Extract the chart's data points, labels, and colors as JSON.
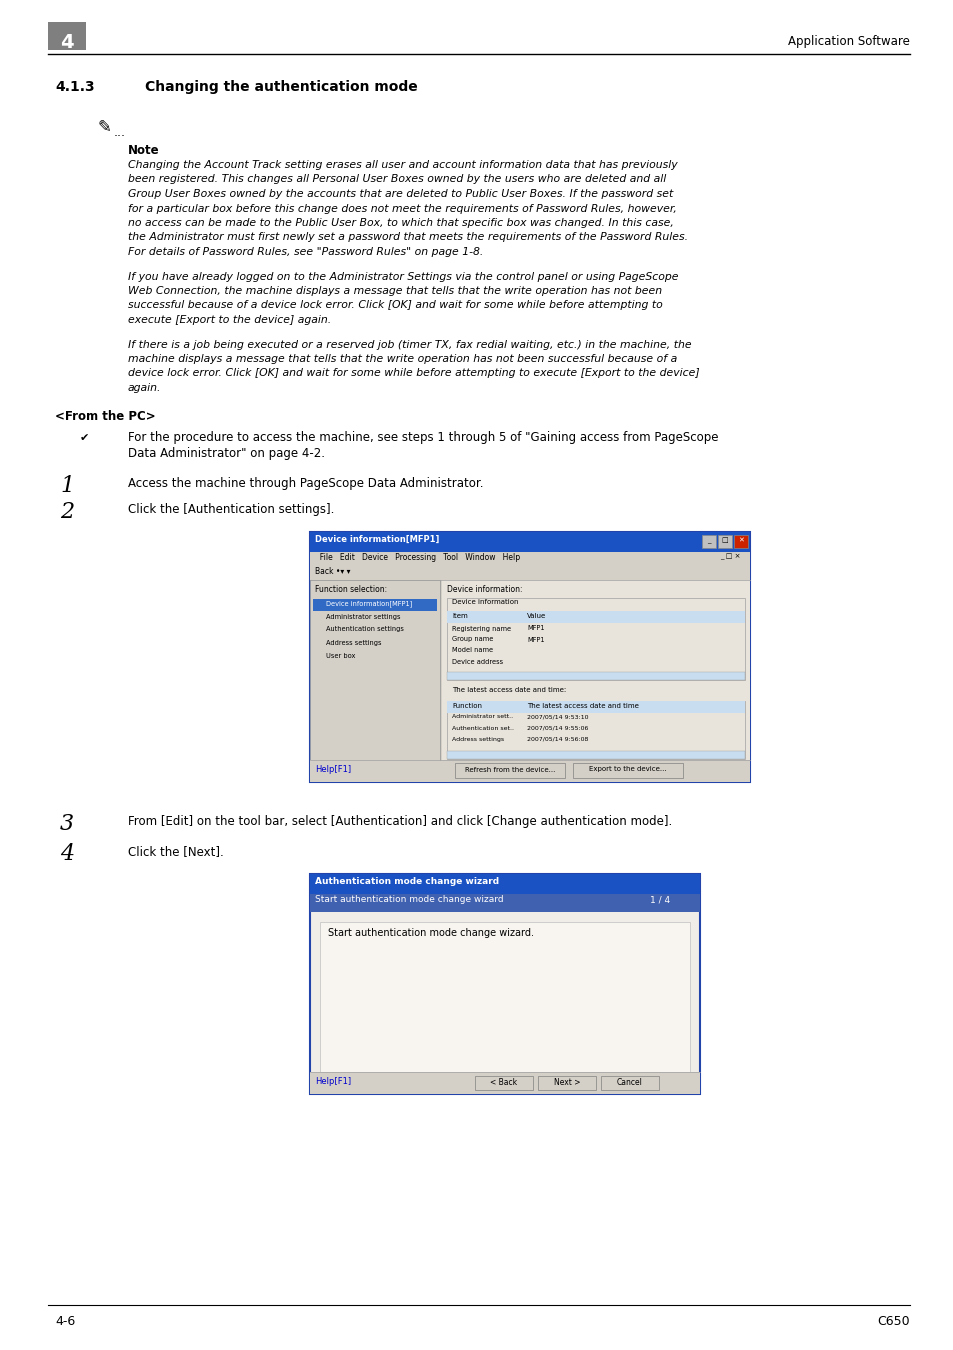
{
  "title_number": "4",
  "header_right": "Application Software",
  "section_number": "4.1.3",
  "section_title": "Changing the authentication mode",
  "note_label": "Note",
  "note_text1_lines": [
    "Changing the Account Track setting erases all user and account information data that has previously",
    "been registered. This changes all Personal User Boxes owned by the users who are deleted and all",
    "Group User Boxes owned by the accounts that are deleted to Public User Boxes. If the password set",
    "for a particular box before this change does not meet the requirements of Password Rules, however,",
    "no access can be made to the Public User Box, to which that specific box was changed. In this case,",
    "the Administrator must first newly set a password that meets the requirements of the Password Rules.",
    "For details of Password Rules, see \"Password Rules\" on page 1-8."
  ],
  "note_text2_lines": [
    "If you have already logged on to the Administrator Settings via the control panel or using PageScope",
    "Web Connection, the machine displays a message that tells that the write operation has not been",
    "successful because of a device lock error. Click [OK] and wait for some while before attempting to",
    "execute [Export to the device] again."
  ],
  "note_text3_lines": [
    "If there is a job being executed or a reserved job (timer TX, fax redial waiting, etc.) in the machine, the",
    "machine displays a message that tells that the write operation has not been successful because of a",
    "device lock error. Click [OK] and wait for some while before attempting to execute [Export to the device]",
    "again."
  ],
  "from_pc_label": "<From the PC>",
  "bullet_text_lines": [
    "For the procedure to access the machine, see steps 1 through 5 of \"Gaining access from PageScope",
    "Data Administrator\" on page 4-2."
  ],
  "step1_text": "Access the machine through PageScope Data Administrator.",
  "step2_text": "Click the [Authentication settings].",
  "step3_text": "From [Edit] on the tool bar, select [Authentication] and click [Change authentication mode].",
  "step4_text": "Click the [Next].",
  "footer_left": "4-6",
  "footer_right": "C650",
  "bg_color": "#ffffff",
  "gray_box_color": "#7f7f7f",
  "win1_title": "Device information[MFP1]",
  "win1_menu": "  File   Edit   Device   Processing   Tool   Window   Help",
  "win1_toolbar": "Back •▾ ▾",
  "win1_left_label": "Function selection:",
  "win1_tree": [
    "Device information[MFP1]",
    "Administrator settings",
    "Authentication settings",
    "Address settings",
    "User box"
  ],
  "win1_right_label": "Device information:",
  "win1_di_header": [
    "Item",
    "Value"
  ],
  "win1_di_rows": [
    [
      "Registering name",
      "MFP1"
    ],
    [
      "Group name",
      "MFP1"
    ],
    [
      "Model name",
      ""
    ],
    [
      "Device address",
      ""
    ]
  ],
  "win1_lat_label": "The latest access date and time:",
  "win1_lat_header": [
    "Function",
    "The latest access date and time"
  ],
  "win1_lat_rows": [
    [
      "Administrator sett..",
      "2007/05/14 9:53:10"
    ],
    [
      "Authentication set..",
      "2007/05/14 9:55:06"
    ],
    [
      "Address settings",
      "2007/05/14 9:56:08"
    ]
  ],
  "win1_help": "Help[F1]",
  "win1_btn1": "Refresh from the device...",
  "win1_btn2": "Export to the device...",
  "win2_title": "Authentication mode change wizard",
  "win2_sub": "Start authentication mode change wizard",
  "win2_page": "1 / 4",
  "win2_content": "Start authentication mode change wizard.",
  "win2_help": "Help[F1]",
  "win2_back": "< Back",
  "win2_next": "Next >",
  "win2_cancel": "Cancel"
}
